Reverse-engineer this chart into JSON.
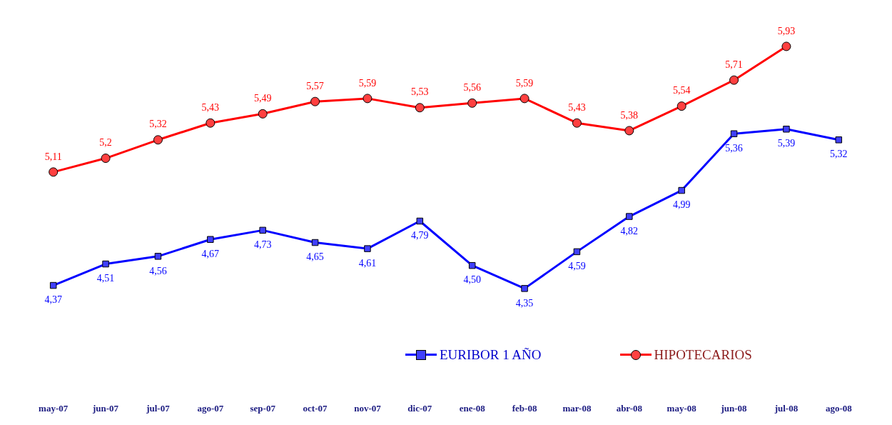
{
  "chart_data": {
    "type": "line",
    "categories": [
      "may-07",
      "jun-07",
      "jul-07",
      "ago-07",
      "sep-07",
      "oct-07",
      "nov-07",
      "dic-07",
      "ene-08",
      "feb-08",
      "mar-08",
      "abr-08",
      "may-08",
      "jun-08",
      "jul-08",
      "ago-08"
    ],
    "series": [
      {
        "name": "EURIBOR 1 AÑO",
        "color": "#0000ff",
        "marker": "square",
        "values": [
          4.37,
          4.51,
          4.56,
          4.67,
          4.73,
          4.65,
          4.61,
          4.79,
          4.5,
          4.35,
          4.59,
          4.82,
          4.99,
          5.36,
          5.39,
          5.32
        ],
        "value_labels": [
          "4,37",
          "4,51",
          "4,56",
          "4,67",
          "4,73",
          "4,65",
          "4,61",
          "4,79",
          "4,50",
          "4,35",
          "4,59",
          "4,82",
          "4,99",
          "5,36",
          "5,39",
          "5,32"
        ]
      },
      {
        "name": "HIPOTECARIOS",
        "color": "#ff0000",
        "marker": "circle",
        "values": [
          5.11,
          5.2,
          5.32,
          5.43,
          5.49,
          5.57,
          5.59,
          5.53,
          5.56,
          5.59,
          5.43,
          5.38,
          5.54,
          5.71,
          5.93,
          null
        ],
        "value_labels": [
          "5,11",
          "5,2",
          "5,32",
          "5,43",
          "5,49",
          "5,57",
          "5,59",
          "5,53",
          "5,56",
          "5,59",
          "5,43",
          "5,38",
          "5,54",
          "5,71",
          "5,93",
          null
        ]
      }
    ],
    "grid": false,
    "legend": "bottom right",
    "tick_labels": "x"
  }
}
